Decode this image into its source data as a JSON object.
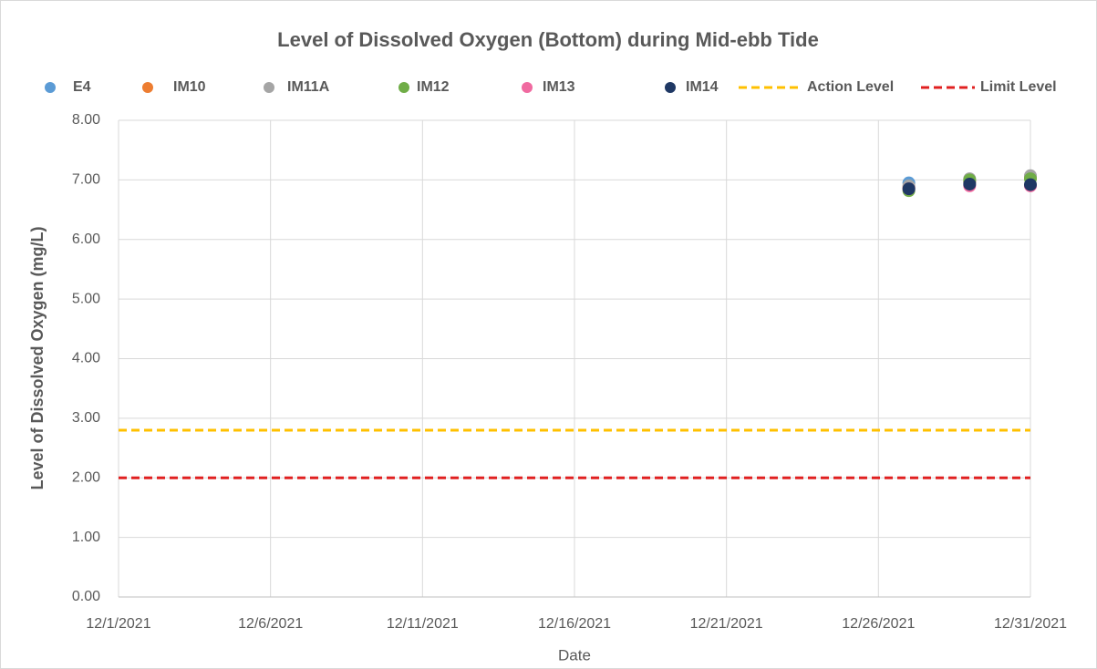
{
  "chart_data": {
    "type": "scatter",
    "title": "Level of Dissolved Oxygen (Bottom) during Mid-ebb Tide",
    "xlabel": "Date",
    "ylabel": "Level of Dissolved Oxygen (mg/L)",
    "x": [
      "12/27/2021",
      "12/29/2021",
      "12/31/2021"
    ],
    "xlim": [
      "12/1/2021",
      "12/31/2021"
    ],
    "xticks": [
      "12/1/2021",
      "12/6/2021",
      "12/11/2021",
      "12/16/2021",
      "12/21/2021",
      "12/26/2021",
      "12/31/2021"
    ],
    "ylim": [
      0,
      8
    ],
    "yticks": [
      {
        "value": 0,
        "label": "0.00"
      },
      {
        "value": 1,
        "label": "1.00"
      },
      {
        "value": 2,
        "label": "2.00"
      },
      {
        "value": 3,
        "label": "3.00"
      },
      {
        "value": 4,
        "label": "4.00"
      },
      {
        "value": 5,
        "label": "5.00"
      },
      {
        "value": 6,
        "label": "6.00"
      },
      {
        "value": 7,
        "label": "7.00"
      },
      {
        "value": 8,
        "label": "8.00"
      }
    ],
    "grid": true,
    "legend": "top",
    "series": [
      {
        "name": "E4",
        "color": "#5b9bd5",
        "values": [
          6.95,
          6.97,
          7.05
        ]
      },
      {
        "name": "IM10",
        "color": "#ed7d31",
        "values": [
          6.88,
          6.97,
          7.03
        ]
      },
      {
        "name": "IM11A",
        "color": "#a5a5a5",
        "values": [
          6.9,
          7.02,
          7.07
        ]
      },
      {
        "name": "IM12",
        "color": "#70ad47",
        "values": [
          6.82,
          7.0,
          7.02
        ]
      },
      {
        "name": "IM13",
        "color": "#f06aa0",
        "values": [
          6.85,
          6.9,
          6.9
        ]
      },
      {
        "name": "IM14",
        "color": "#1f3864",
        "values": [
          6.85,
          6.93,
          6.92
        ]
      },
      {
        "name": "Action Level",
        "color": "#ffc000",
        "style": "dashed",
        "x": [
          "12/1/2021",
          "12/31/2021"
        ],
        "values": [
          2.8,
          2.8
        ]
      },
      {
        "name": "Limit Level",
        "color": "#e02020",
        "style": "dashed",
        "x": [
          "12/1/2021",
          "12/31/2021"
        ],
        "values": [
          2.0,
          2.0
        ]
      }
    ]
  }
}
